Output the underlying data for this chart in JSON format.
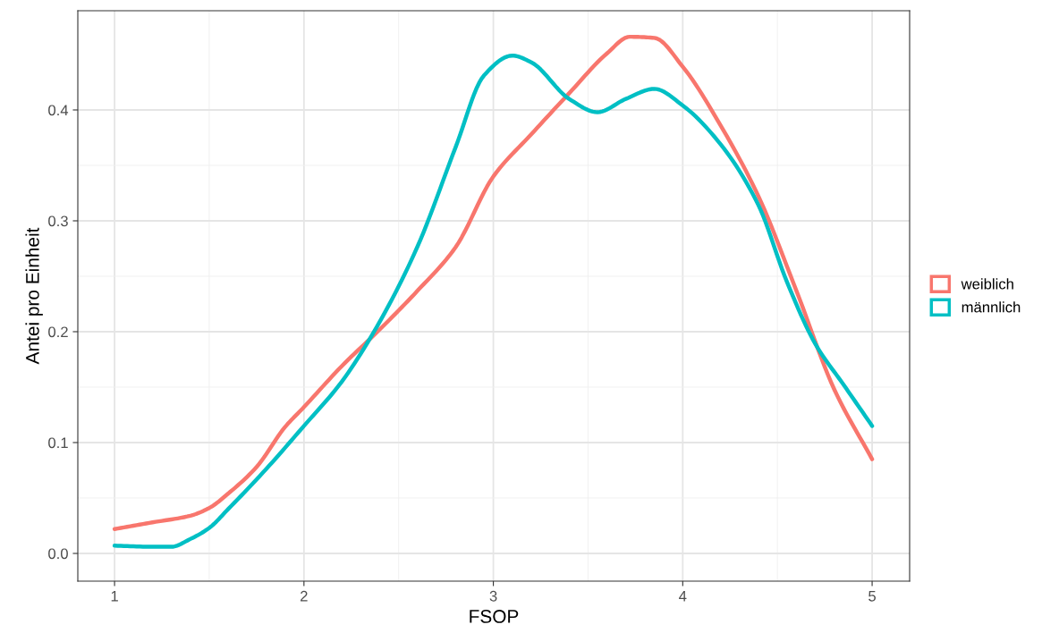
{
  "chart_data": {
    "type": "line",
    "xlabel": "FSOP",
    "ylabel": "Antei pro Einheit",
    "xlim": [
      0.806,
      5.198
    ],
    "ylim": [
      -0.025,
      0.4895
    ],
    "xticks": [
      1,
      2,
      3,
      4,
      5
    ],
    "yticks": [
      {
        "value": 0,
        "label": "0.0"
      },
      0.1,
      0.2,
      0.3,
      0.4
    ],
    "grid": true,
    "legend": "right",
    "line_style": "solid",
    "marker": "none",
    "series": [
      {
        "name": "weiblich",
        "color": "#f8766d",
        "x": [
          1,
          1.2,
          1.4,
          1.5,
          1.6,
          1.75,
          1.9,
          2.0,
          2.2,
          2.4,
          2.6,
          2.8,
          3.0,
          3.2,
          3.4,
          3.6,
          3.72,
          3.85,
          4.0,
          4.2,
          4.4,
          4.6,
          4.8,
          5.0
        ],
        "values": [
          0.022,
          0.028,
          0.034,
          0.041,
          0.054,
          0.078,
          0.114,
          0.132,
          0.169,
          0.202,
          0.237,
          0.276,
          0.34,
          0.378,
          0.415,
          0.451,
          0.466,
          0.465,
          0.439,
          0.386,
          0.322,
          0.237,
          0.148,
          0.085
        ]
      },
      {
        "name": "männlich",
        "color": "#00bfc4",
        "x": [
          1.0,
          1.2,
          1.3,
          1.4,
          1.5,
          1.6,
          1.8,
          2.0,
          2.2,
          2.4,
          2.6,
          2.8,
          2.95,
          3.1,
          3.2,
          3.4,
          3.55,
          3.7,
          3.85,
          4.0,
          4.2,
          4.4,
          4.55,
          4.7,
          4.85,
          5.0
        ],
        "values": [
          0.007,
          0.006,
          0.006,
          0.013,
          0.023,
          0.04,
          0.076,
          0.115,
          0.155,
          0.209,
          0.277,
          0.366,
          0.431,
          0.449,
          0.443,
          0.41,
          0.398,
          0.41,
          0.419,
          0.404,
          0.369,
          0.314,
          0.245,
          0.189,
          0.152,
          0.115
        ]
      }
    ]
  }
}
